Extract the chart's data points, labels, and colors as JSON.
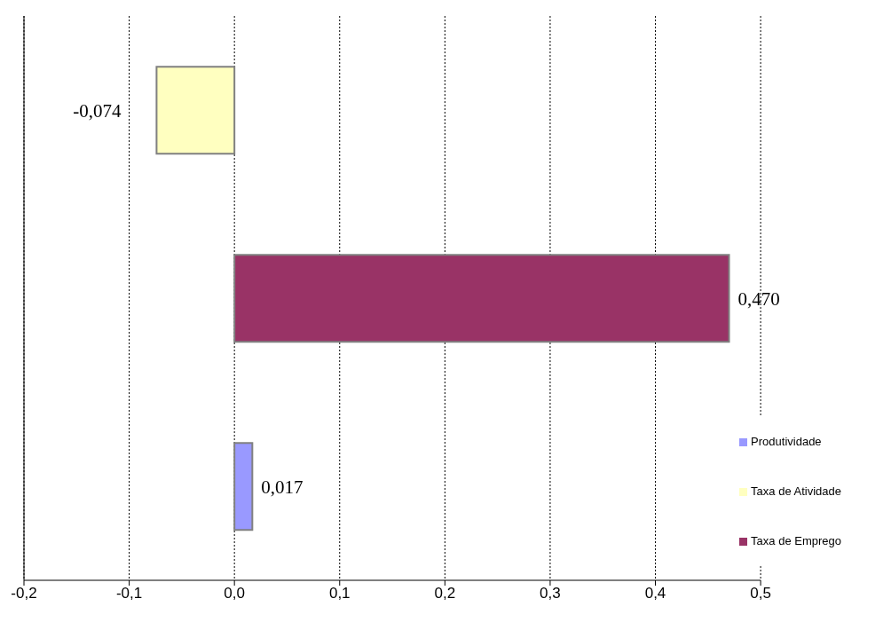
{
  "chart_data": {
    "type": "bar",
    "orientation": "horizontal",
    "categories": [
      null,
      null,
      null
    ],
    "series": [
      {
        "name": "Taxa de Atividade",
        "color": "#ffffc0",
        "values": [
          -0.074,
          null,
          null
        ],
        "value_labels": [
          "-0,074",
          null,
          null
        ]
      },
      {
        "name": "Taxa de Emprego",
        "color": "#993366",
        "values": [
          null,
          0.47,
          null
        ],
        "value_labels": [
          null,
          "0,470",
          null
        ]
      },
      {
        "name": "Produtividade",
        "color": "#9999ff",
        "values": [
          null,
          null,
          0.017
        ],
        "value_labels": [
          null,
          null,
          "0,017"
        ]
      }
    ],
    "xlim": [
      -0.2,
      0.5
    ],
    "xticks": [
      {
        "value": -0.2,
        "label": "-0,2"
      },
      {
        "value": -0.1,
        "label": "-0,1"
      },
      {
        "value": 0,
        "label": "0,0"
      },
      {
        "value": 0.1,
        "label": "0,1"
      },
      {
        "value": 0.2,
        "label": "0,2"
      },
      {
        "value": 0.3,
        "label": "0,3"
      },
      {
        "value": 0.4,
        "label": "0,4"
      },
      {
        "value": 0.5,
        "label": "0,5"
      }
    ],
    "grid": "x",
    "legend": "bottom right"
  }
}
